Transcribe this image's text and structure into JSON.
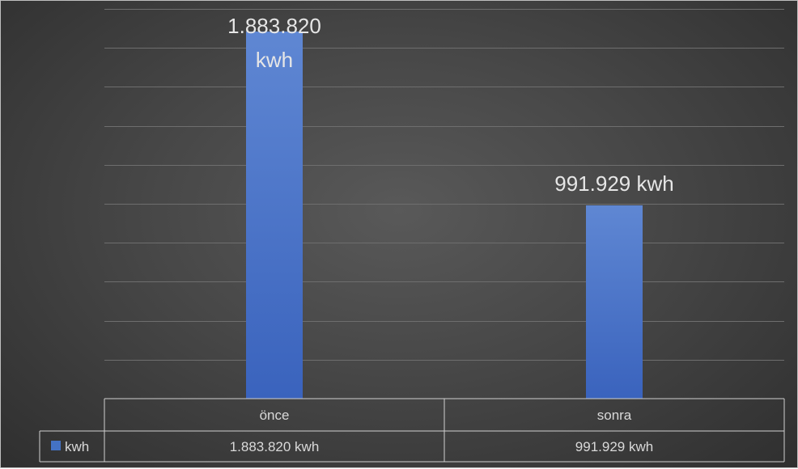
{
  "chart_data": {
    "type": "bar",
    "categories": [
      "önce",
      "sonra"
    ],
    "series": [
      {
        "name": "kwh",
        "values": [
          1883820,
          991929
        ],
        "color": "#4472c4"
      }
    ],
    "data_labels": [
      "1.883.820 kwh",
      "991.929 kwh"
    ],
    "table_values": [
      "1.883.820 kwh",
      "991.929 kwh"
    ],
    "ylim": [
      0,
      2000000
    ],
    "grid": true,
    "data_table": true,
    "legend_key_in_table": true
  }
}
